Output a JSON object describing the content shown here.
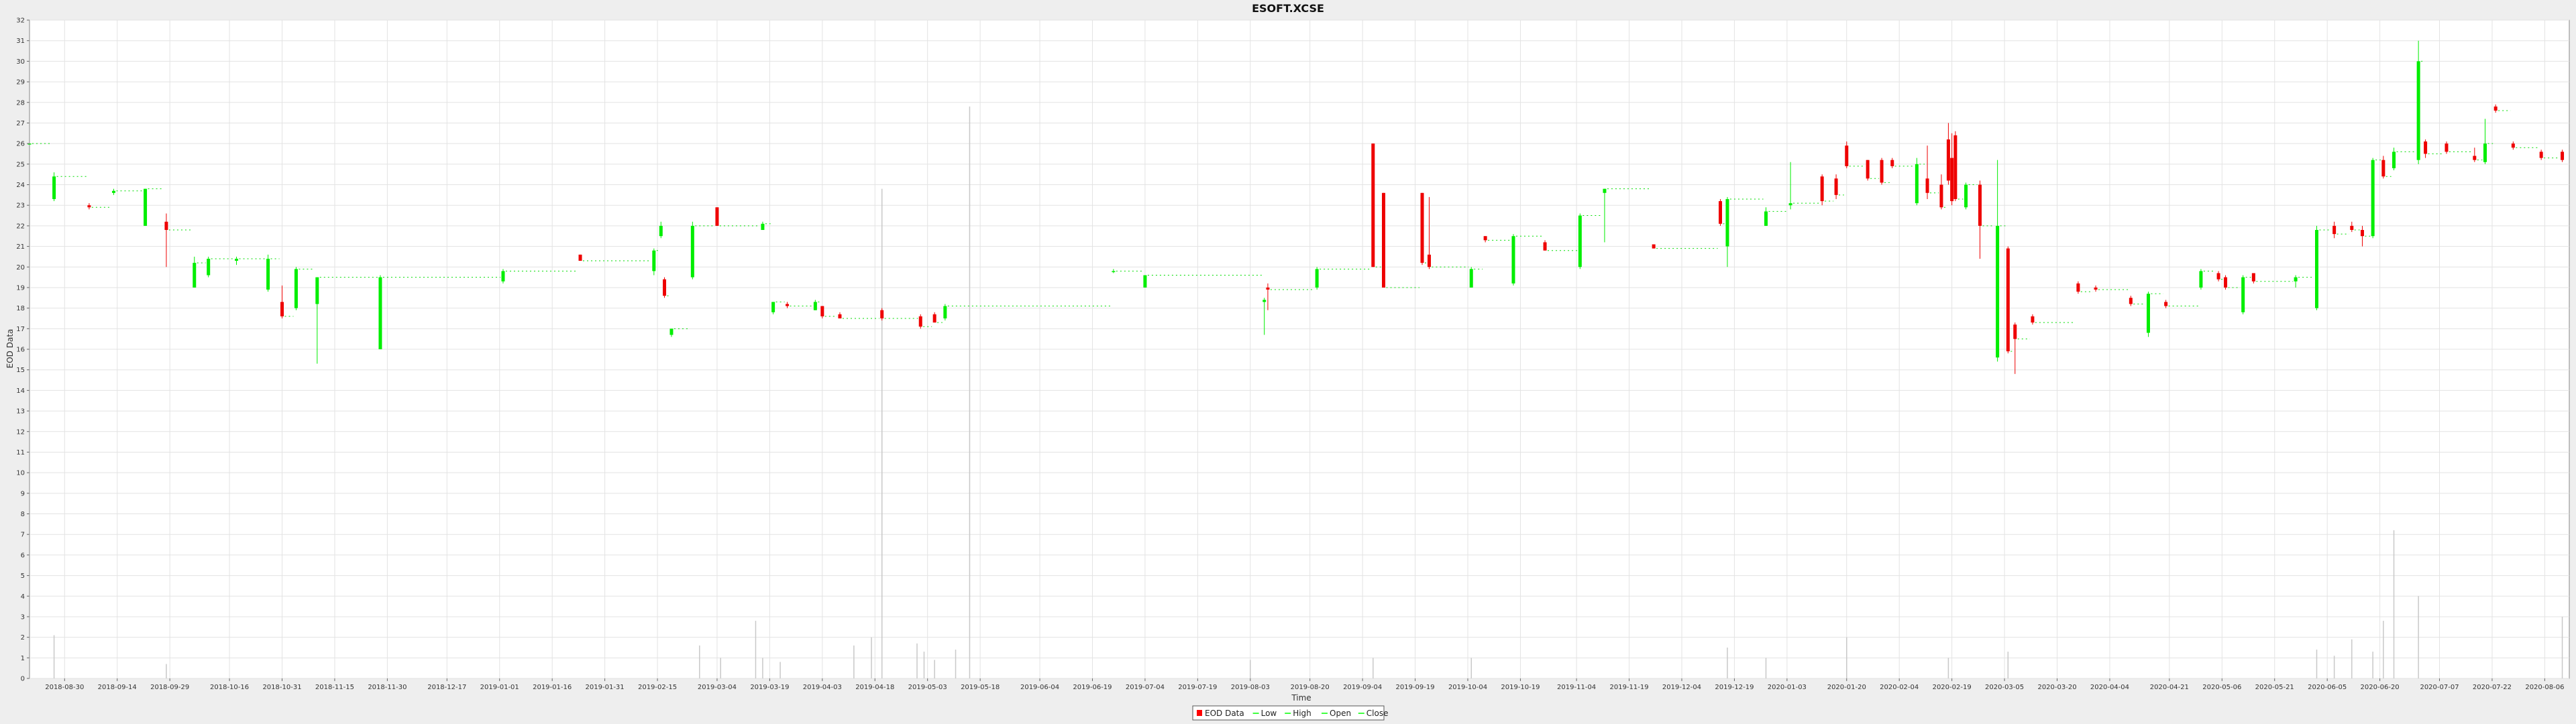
{
  "chart_data": {
    "type": "candlestick",
    "title": "ESOFT.XCSE",
    "xlabel": "Time",
    "ylabel": "EOD Data",
    "ylim": [
      0,
      32
    ],
    "y_ticks": [
      0,
      1,
      2,
      3,
      4,
      5,
      6,
      7,
      8,
      9,
      10,
      11,
      12,
      13,
      14,
      15,
      16,
      17,
      18,
      19,
      20,
      21,
      22,
      23,
      24,
      25,
      26,
      27,
      28,
      29,
      30,
      31,
      32
    ],
    "x_range": [
      "2018-08-20",
      "2020-08-13"
    ],
    "x_ticks": [
      "2018-08-30",
      "2018-09-14",
      "2018-09-29",
      "2018-10-16",
      "2018-10-31",
      "2018-11-15",
      "2018-11-30",
      "2018-12-17",
      "2019-01-01",
      "2019-01-16",
      "2019-01-31",
      "2019-02-15",
      "2019-03-04",
      "2019-03-19",
      "2019-04-03",
      "2019-04-18",
      "2019-05-03",
      "2019-05-18",
      "2019-06-04",
      "2019-06-19",
      "2019-07-04",
      "2019-07-19",
      "2019-08-03",
      "2019-08-20",
      "2019-09-04",
      "2019-09-19",
      "2019-10-04",
      "2019-10-19",
      "2019-11-04",
      "2019-11-19",
      "2019-12-04",
      "2019-12-19",
      "2020-01-03",
      "2020-01-20",
      "2020-02-04",
      "2020-02-19",
      "2020-03-05",
      "2020-03-20",
      "2020-04-04",
      "2020-04-21",
      "2020-05-06",
      "2020-05-21",
      "2020-06-05",
      "2020-06-20",
      "2020-07-07",
      "2020-07-22",
      "2020-08-06"
    ],
    "grid": true,
    "legend": {
      "position": "bottom",
      "entries": [
        {
          "name": "EOD Data",
          "color": "#ff0000"
        },
        {
          "name": "Low",
          "color": "#00ff00"
        },
        {
          "name": "High",
          "color": "#00ff00"
        },
        {
          "name": "Open",
          "color": "#00ff00"
        },
        {
          "name": "Close",
          "color": "#00ff00"
        }
      ]
    },
    "colors": {
      "up": "#00ee00",
      "down": "#ee0000",
      "volume": "#c8c8c8"
    },
    "candles": [
      {
        "date": "2018-08-20",
        "open": 26.0,
        "high": 26.0,
        "low": 26.0,
        "close": 26.0
      },
      {
        "date": "2018-08-27",
        "open": 23.3,
        "high": 24.6,
        "low": 23.2,
        "close": 24.4
      },
      {
        "date": "2018-09-06",
        "open": 23.0,
        "high": 23.1,
        "low": 22.8,
        "close": 22.9
      },
      {
        "date": "2018-09-13",
        "open": 23.6,
        "high": 23.8,
        "low": 23.5,
        "close": 23.7
      },
      {
        "date": "2018-09-22",
        "open": 22.0,
        "high": 23.8,
        "low": 22.0,
        "close": 23.8
      },
      {
        "date": "2018-09-28",
        "open": 22.2,
        "high": 22.6,
        "low": 20.0,
        "close": 21.8
      },
      {
        "date": "2018-10-06",
        "open": 19.0,
        "high": 20.5,
        "low": 19.0,
        "close": 20.2
      },
      {
        "date": "2018-10-10",
        "open": 19.6,
        "high": 20.5,
        "low": 19.5,
        "close": 20.4
      },
      {
        "date": "2018-10-18",
        "open": 20.3,
        "high": 20.5,
        "low": 20.1,
        "close": 20.4
      },
      {
        "date": "2018-10-27",
        "open": 18.9,
        "high": 20.6,
        "low": 18.8,
        "close": 20.4
      },
      {
        "date": "2018-10-31",
        "open": 18.3,
        "high": 19.1,
        "low": 17.5,
        "close": 17.6
      },
      {
        "date": "2018-11-04",
        "open": 18.0,
        "high": 20.0,
        "low": 17.9,
        "close": 19.9
      },
      {
        "date": "2018-11-10",
        "open": 18.2,
        "high": 19.5,
        "low": 15.3,
        "close": 19.5
      },
      {
        "date": "2018-11-28",
        "open": 16.0,
        "high": 19.6,
        "low": 16.0,
        "close": 19.5
      },
      {
        "date": "2019-01-02",
        "open": 19.3,
        "high": 19.9,
        "low": 19.2,
        "close": 19.8
      },
      {
        "date": "2019-01-24",
        "open": 20.6,
        "high": 20.6,
        "low": 20.3,
        "close": 20.3
      },
      {
        "date": "2019-02-14",
        "open": 19.8,
        "high": 20.9,
        "low": 19.6,
        "close": 20.8
      },
      {
        "date": "2019-02-16",
        "open": 21.5,
        "high": 22.2,
        "low": 21.4,
        "close": 22.0
      },
      {
        "date": "2019-02-17",
        "open": 19.4,
        "high": 19.5,
        "low": 18.5,
        "close": 18.6
      },
      {
        "date": "2019-02-19",
        "open": 16.7,
        "high": 17.0,
        "low": 16.6,
        "close": 17.0
      },
      {
        "date": "2019-02-25",
        "open": 19.5,
        "high": 22.2,
        "low": 19.4,
        "close": 22.0
      },
      {
        "date": "2019-03-04",
        "open": 22.9,
        "high": 22.9,
        "low": 22.0,
        "close": 22.0
      },
      {
        "date": "2019-03-17",
        "open": 21.8,
        "high": 22.2,
        "low": 21.8,
        "close": 22.1
      },
      {
        "date": "2019-03-20",
        "open": 17.8,
        "high": 18.3,
        "low": 17.7,
        "close": 18.3
      },
      {
        "date": "2019-03-24",
        "open": 18.2,
        "high": 18.3,
        "low": 18.0,
        "close": 18.1
      },
      {
        "date": "2019-04-01",
        "open": 17.9,
        "high": 18.4,
        "low": 17.9,
        "close": 18.3
      },
      {
        "date": "2019-04-03",
        "open": 18.1,
        "high": 18.1,
        "low": 17.5,
        "close": 17.6
      },
      {
        "date": "2019-04-08",
        "open": 17.7,
        "high": 17.8,
        "low": 17.5,
        "close": 17.5
      },
      {
        "date": "2019-04-20",
        "open": 17.9,
        "high": 18.0,
        "low": 17.4,
        "close": 17.5
      },
      {
        "date": "2019-05-01",
        "open": 17.6,
        "high": 17.7,
        "low": 17.0,
        "close": 17.1
      },
      {
        "date": "2019-05-05",
        "open": 17.7,
        "high": 17.8,
        "low": 17.3,
        "close": 17.3
      },
      {
        "date": "2019-05-08",
        "open": 17.5,
        "high": 18.2,
        "low": 17.4,
        "close": 18.1
      },
      {
        "date": "2019-06-25",
        "open": 19.8,
        "high": 19.9,
        "low": 19.7,
        "close": 19.8
      },
      {
        "date": "2019-07-04",
        "open": 19.0,
        "high": 19.6,
        "low": 19.0,
        "close": 19.6
      },
      {
        "date": "2019-08-07",
        "open": 18.3,
        "high": 18.5,
        "low": 16.7,
        "close": 18.4
      },
      {
        "date": "2019-08-08",
        "open": 19.0,
        "high": 19.2,
        "low": 17.9,
        "close": 18.9
      },
      {
        "date": "2019-08-22",
        "open": 19.0,
        "high": 20.0,
        "low": 18.9,
        "close": 19.9
      },
      {
        "date": "2019-09-07",
        "open": 26.0,
        "high": 26.0,
        "low": 20.0,
        "close": 20.0
      },
      {
        "date": "2019-09-10",
        "open": 23.6,
        "high": 23.6,
        "low": 19.0,
        "close": 19.0
      },
      {
        "date": "2019-09-21",
        "open": 23.6,
        "high": 23.6,
        "low": 20.1,
        "close": 20.2
      },
      {
        "date": "2019-09-23",
        "open": 20.6,
        "high": 23.4,
        "low": 19.9,
        "close": 20.0
      },
      {
        "date": "2019-10-05",
        "open": 19.0,
        "high": 20.0,
        "low": 19.0,
        "close": 19.9
      },
      {
        "date": "2019-10-09",
        "open": 21.5,
        "high": 21.5,
        "low": 21.2,
        "close": 21.3
      },
      {
        "date": "2019-10-17",
        "open": 19.2,
        "high": 21.6,
        "low": 19.1,
        "close": 21.5
      },
      {
        "date": "2019-10-26",
        "open": 21.2,
        "high": 21.3,
        "low": 20.8,
        "close": 20.8
      },
      {
        "date": "2019-11-05",
        "open": 20.0,
        "high": 22.6,
        "low": 19.9,
        "close": 22.5
      },
      {
        "date": "2019-11-12",
        "open": 23.6,
        "high": 23.8,
        "low": 21.2,
        "close": 23.8
      },
      {
        "date": "2019-11-26",
        "open": 21.1,
        "high": 21.1,
        "low": 20.9,
        "close": 20.9
      },
      {
        "date": "2019-12-15",
        "open": 23.2,
        "high": 23.3,
        "low": 22.0,
        "close": 22.1
      },
      {
        "date": "2019-12-17",
        "open": 21.0,
        "high": 23.4,
        "low": 20.0,
        "close": 23.3
      },
      {
        "date": "2019-12-28",
        "open": 22.0,
        "high": 22.9,
        "low": 22.0,
        "close": 22.7
      },
      {
        "date": "2020-01-04",
        "open": 23.0,
        "high": 25.1,
        "low": 22.8,
        "close": 23.1
      },
      {
        "date": "2020-01-13",
        "open": 24.4,
        "high": 24.5,
        "low": 23.0,
        "close": 23.2
      },
      {
        "date": "2020-01-17",
        "open": 24.3,
        "high": 24.5,
        "low": 23.3,
        "close": 23.5
      },
      {
        "date": "2020-01-20",
        "open": 25.9,
        "high": 26.1,
        "low": 24.8,
        "close": 24.9
      },
      {
        "date": "2020-01-26",
        "open": 25.2,
        "high": 25.2,
        "low": 24.2,
        "close": 24.3
      },
      {
        "date": "2020-01-30",
        "open": 25.2,
        "high": 25.3,
        "low": 24.0,
        "close": 24.1
      },
      {
        "date": "2020-02-02",
        "open": 25.2,
        "high": 25.3,
        "low": 24.8,
        "close": 24.9
      },
      {
        "date": "2020-02-09",
        "open": 23.1,
        "high": 25.3,
        "low": 23.0,
        "close": 25.0
      },
      {
        "date": "2020-02-12",
        "open": 24.3,
        "high": 25.9,
        "low": 23.3,
        "close": 23.6
      },
      {
        "date": "2020-02-16",
        "open": 24.0,
        "high": 24.5,
        "low": 22.8,
        "close": 22.9
      },
      {
        "date": "2020-02-18",
        "open": 26.2,
        "high": 27.0,
        "low": 24.0,
        "close": 24.2
      },
      {
        "date": "2020-02-19",
        "open": 25.3,
        "high": 26.5,
        "low": 23.0,
        "close": 23.2
      },
      {
        "date": "2020-02-20",
        "open": 26.4,
        "high": 26.6,
        "low": 23.2,
        "close": 23.3
      },
      {
        "date": "2020-02-23",
        "open": 22.9,
        "high": 24.1,
        "low": 22.8,
        "close": 24.0
      },
      {
        "date": "2020-02-27",
        "open": 24.0,
        "high": 24.2,
        "low": 20.4,
        "close": 22.0
      },
      {
        "date": "2020-03-03",
        "open": 15.6,
        "high": 25.2,
        "low": 15.4,
        "close": 22.0
      },
      {
        "date": "2020-03-06",
        "open": 20.9,
        "high": 21.0,
        "low": 15.8,
        "close": 15.9
      },
      {
        "date": "2020-03-08",
        "open": 17.2,
        "high": 17.3,
        "low": 14.8,
        "close": 16.5
      },
      {
        "date": "2020-03-13",
        "open": 17.6,
        "high": 17.7,
        "low": 17.2,
        "close": 17.3
      },
      {
        "date": "2020-03-26",
        "open": 19.2,
        "high": 19.3,
        "low": 18.7,
        "close": 18.8
      },
      {
        "date": "2020-03-31",
        "open": 19.0,
        "high": 19.1,
        "low": 18.8,
        "close": 18.9
      },
      {
        "date": "2020-04-10",
        "open": 18.5,
        "high": 18.6,
        "low": 18.1,
        "close": 18.2
      },
      {
        "date": "2020-04-15",
        "open": 16.8,
        "high": 18.8,
        "low": 16.6,
        "close": 18.7
      },
      {
        "date": "2020-04-20",
        "open": 18.3,
        "high": 18.4,
        "low": 18.0,
        "close": 18.1
      },
      {
        "date": "2020-04-30",
        "open": 19.0,
        "high": 19.9,
        "low": 18.9,
        "close": 19.8
      },
      {
        "date": "2020-05-05",
        "open": 19.7,
        "high": 19.8,
        "low": 19.3,
        "close": 19.4
      },
      {
        "date": "2020-05-07",
        "open": 19.5,
        "high": 19.6,
        "low": 18.9,
        "close": 19.0
      },
      {
        "date": "2020-05-12",
        "open": 17.8,
        "high": 19.6,
        "low": 17.7,
        "close": 19.5
      },
      {
        "date": "2020-05-15",
        "open": 19.7,
        "high": 19.7,
        "low": 19.2,
        "close": 19.3
      },
      {
        "date": "2020-05-27",
        "open": 19.3,
        "high": 19.6,
        "low": 19.0,
        "close": 19.5
      },
      {
        "date": "2020-06-02",
        "open": 18.0,
        "high": 22.0,
        "low": 17.9,
        "close": 21.8
      },
      {
        "date": "2020-06-07",
        "open": 22.0,
        "high": 22.2,
        "low": 21.4,
        "close": 21.6
      },
      {
        "date": "2020-06-12",
        "open": 22.0,
        "high": 22.2,
        "low": 21.7,
        "close": 21.8
      },
      {
        "date": "2020-06-15",
        "open": 21.8,
        "high": 22.0,
        "low": 21.0,
        "close": 21.5
      },
      {
        "date": "2020-06-18",
        "open": 21.5,
        "high": 25.3,
        "low": 21.4,
        "close": 25.2
      },
      {
        "date": "2020-06-21",
        "open": 25.2,
        "high": 25.4,
        "low": 24.3,
        "close": 24.4
      },
      {
        "date": "2020-06-24",
        "open": 24.8,
        "high": 25.8,
        "low": 24.7,
        "close": 25.6
      },
      {
        "date": "2020-07-01",
        "open": 25.2,
        "high": 31.0,
        "low": 25.0,
        "close": 30.0
      },
      {
        "date": "2020-07-03",
        "open": 26.1,
        "high": 26.2,
        "low": 25.3,
        "close": 25.5
      },
      {
        "date": "2020-07-09",
        "open": 26.0,
        "high": 26.1,
        "low": 25.5,
        "close": 25.6
      },
      {
        "date": "2020-07-17",
        "open": 25.4,
        "high": 25.8,
        "low": 25.1,
        "close": 25.2
      },
      {
        "date": "2020-07-20",
        "open": 25.1,
        "high": 27.2,
        "low": 25.0,
        "close": 26.0
      },
      {
        "date": "2020-07-23",
        "open": 27.8,
        "high": 27.9,
        "low": 27.5,
        "close": 27.6
      },
      {
        "date": "2020-07-28",
        "open": 26.0,
        "high": 26.1,
        "low": 25.7,
        "close": 25.8
      },
      {
        "date": "2020-08-05",
        "open": 25.6,
        "high": 25.7,
        "low": 25.2,
        "close": 25.3
      },
      {
        "date": "2020-08-11",
        "open": 25.6,
        "high": 25.7,
        "low": 25.1,
        "close": 25.2
      }
    ],
    "volume": [
      {
        "date": "2018-08-27",
        "value": 2.1
      },
      {
        "date": "2018-09-28",
        "value": 0.7
      },
      {
        "date": "2019-02-27",
        "value": 1.6
      },
      {
        "date": "2019-03-05",
        "value": 1.0
      },
      {
        "date": "2019-03-15",
        "value": 2.8
      },
      {
        "date": "2019-03-17",
        "value": 1.0
      },
      {
        "date": "2019-03-22",
        "value": 0.8
      },
      {
        "date": "2019-04-12",
        "value": 1.6
      },
      {
        "date": "2019-04-17",
        "value": 2.0
      },
      {
        "date": "2019-04-20",
        "value": 23.8
      },
      {
        "date": "2019-04-30",
        "value": 1.7
      },
      {
        "date": "2019-05-02",
        "value": 1.3
      },
      {
        "date": "2019-05-05",
        "value": 0.9
      },
      {
        "date": "2019-05-11",
        "value": 1.4
      },
      {
        "date": "2019-05-15",
        "value": 27.8
      },
      {
        "date": "2019-08-03",
        "value": 0.9
      },
      {
        "date": "2019-09-07",
        "value": 1.0
      },
      {
        "date": "2019-10-05",
        "value": 1.0
      },
      {
        "date": "2019-12-17",
        "value": 1.5
      },
      {
        "date": "2019-12-28",
        "value": 1.0
      },
      {
        "date": "2020-01-20",
        "value": 2.0
      },
      {
        "date": "2020-02-18",
        "value": 1.0
      },
      {
        "date": "2020-03-06",
        "value": 1.3
      },
      {
        "date": "2020-06-02",
        "value": 1.4
      },
      {
        "date": "2020-06-07",
        "value": 1.1
      },
      {
        "date": "2020-06-12",
        "value": 1.9
      },
      {
        "date": "2020-06-18",
        "value": 1.3
      },
      {
        "date": "2020-06-21",
        "value": 2.8
      },
      {
        "date": "2020-06-24",
        "value": 7.2
      },
      {
        "date": "2020-07-01",
        "value": 4.0
      },
      {
        "date": "2020-08-11",
        "value": 3.0
      }
    ]
  }
}
